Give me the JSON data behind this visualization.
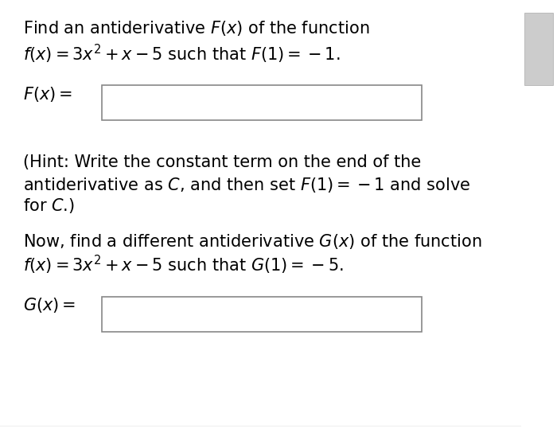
{
  "background_color": "#ffffff",
  "text_color": "#000000",
  "line1": "Find an antiderivative $F(x)$ of the function",
  "line2": "$f(x) = 3x^2 + x - 5$ such that $F(1) = -1$.",
  "fx_label": "$F(x) =$",
  "hint_line1": "(Hint: Write the constant term on the end of the",
  "hint_line2": "antiderivative as $C$, and then set $F(1) = -1$ and solve",
  "hint_line3": "for $C$.)",
  "now_line1": "Now, find a different antiderivative $G(x)$ of the function",
  "now_line2": "$f(x) = 3x^2 + x - 5$ such that $G(1) = -5$.",
  "gx_label": "$G(x) =$",
  "font_size_main": 15,
  "box_facecolor": "#ffffff",
  "box_edgecolor": "#888888",
  "fig_width": 7.0,
  "fig_height": 5.58
}
